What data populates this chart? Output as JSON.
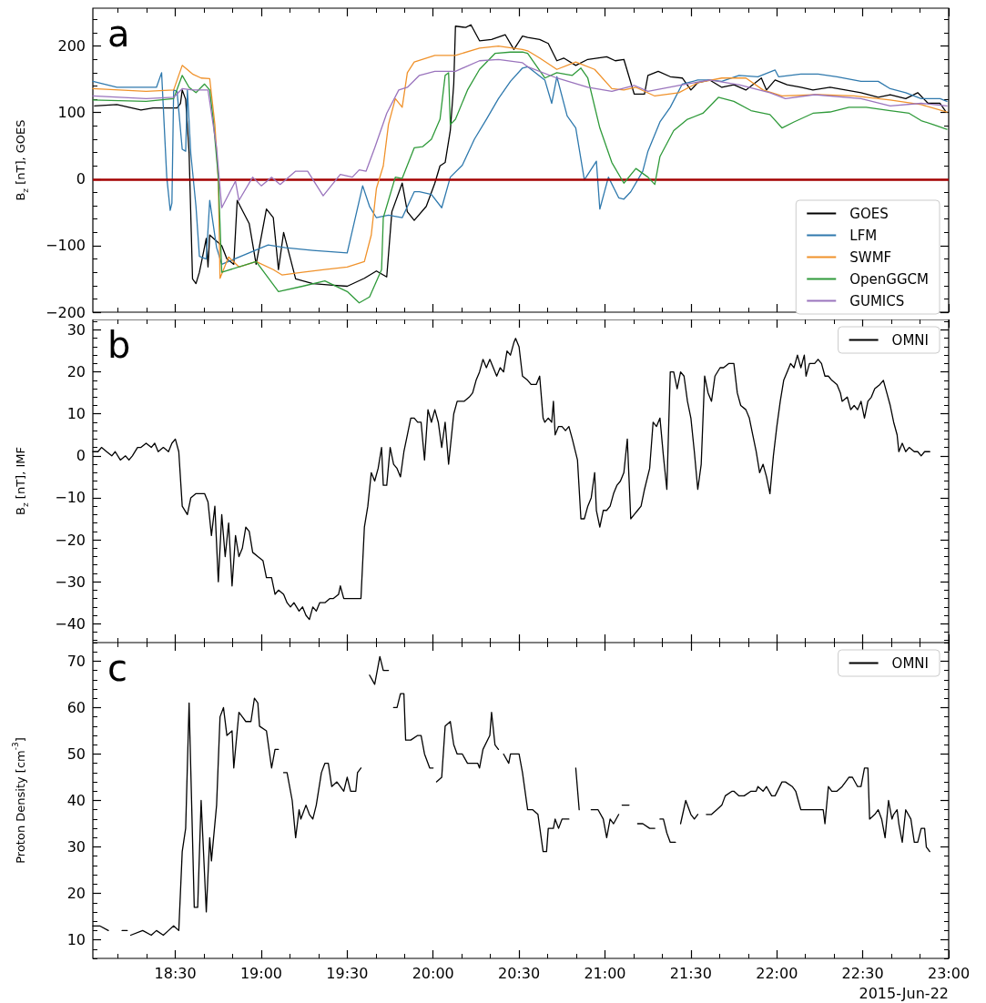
{
  "chart_data": [
    {
      "type": "line",
      "ylabel": "B$_{z}$ [nT], GOES",
      "annotations": [
        "a"
      ],
      "xlim": [
        18.02,
        23
      ],
      "xticks": [
        {
          "value": 18.5,
          "label": null
        },
        {
          "value": 19,
          "label": null
        },
        {
          "value": 19.5,
          "label": null
        },
        {
          "value": 20,
          "label": null
        },
        {
          "value": 20.5,
          "label": null
        },
        {
          "value": 21,
          "label": null
        },
        {
          "value": 21.5,
          "label": null
        },
        {
          "value": 22,
          "label": null
        },
        {
          "value": 22.5,
          "label": null
        },
        {
          "value": 23,
          "label": null
        }
      ],
      "ylim": [
        -200,
        257
      ],
      "yticks": [
        {
          "value": -200,
          "label": "−200"
        },
        {
          "value": -100,
          "label": "−100"
        },
        0,
        100,
        200
      ],
      "tick_labels": "y",
      "legend": "bottom right",
      "marker": "none",
      "line_style": "solid",
      "ref_lines": [
        {
          "axis": "y",
          "value": 0,
          "color": "#a30000"
        }
      ],
      "series": [
        {
          "name": "GOES",
          "color": "#000000",
          "x": [
            18.03,
            18.16,
            18.3,
            18.37,
            18.51,
            18.53,
            18.54,
            18.56,
            18.58,
            18.6,
            18.62,
            18.64,
            18.68,
            18.69,
            18.7,
            18.77,
            18.8,
            18.84,
            18.86,
            18.93,
            18.97,
            19.03,
            19.07,
            19.1,
            19.13,
            19.2,
            19.3,
            19.4,
            19.5,
            19.6,
            19.67,
            19.73,
            19.76,
            19.82,
            19.85,
            19.89,
            19.96,
            20.01,
            20.04,
            20.07,
            20.1,
            20.12,
            20.13,
            20.19,
            20.22,
            20.27,
            20.34,
            20.42,
            20.47,
            20.52,
            20.55,
            20.62,
            20.67,
            20.72,
            20.76,
            20.83,
            20.9,
            21.01,
            21.06,
            21.11,
            21.17,
            21.23,
            21.25,
            21.31,
            21.38,
            21.45,
            21.5,
            21.54,
            21.61,
            21.68,
            21.75,
            21.82,
            21.91,
            21.94,
            21.99,
            22.06,
            22.14,
            22.21,
            22.31,
            22.4,
            22.49,
            22.59,
            22.66,
            22.75,
            22.82,
            22.88,
            22.95,
            22.98
          ],
          "values": [
            110,
            112,
            104,
            107,
            107,
            114,
            134,
            120,
            40,
            -150,
            -157,
            -140,
            -89,
            -132,
            -84,
            -100,
            -120,
            -128,
            -32,
            -67,
            -128,
            -45,
            -58,
            -136,
            -80,
            -150,
            -157,
            -159,
            -161,
            -149,
            -138,
            -147,
            -49,
            -6,
            -49,
            -62,
            -41,
            -6,
            20,
            25,
            73,
            143,
            230,
            228,
            232,
            208,
            210,
            217,
            195,
            215,
            213,
            210,
            204,
            178,
            182,
            171,
            180,
            184,
            178,
            180,
            128,
            128,
            156,
            162,
            154,
            152,
            134,
            145,
            149,
            138,
            142,
            134,
            152,
            134,
            149,
            142,
            138,
            134,
            138,
            134,
            130,
            123,
            127,
            121,
            130,
            114,
            114,
            103
          ]
        },
        {
          "name": "LFM",
          "color": "#2f79ad",
          "x": [
            18.02,
            18.16,
            18.39,
            18.42,
            18.45,
            18.47,
            18.48,
            18.49,
            18.51,
            18.54,
            18.56,
            18.57,
            18.59,
            18.62,
            18.64,
            18.68,
            18.7,
            18.74,
            18.77,
            19.04,
            19.14,
            19.3,
            19.5,
            19.59,
            19.63,
            19.67,
            19.74,
            19.82,
            19.89,
            19.92,
            19.99,
            20.05,
            20.1,
            20.17,
            20.24,
            20.31,
            20.38,
            20.45,
            20.52,
            20.55,
            20.65,
            20.69,
            20.72,
            20.78,
            20.83,
            20.88,
            20.95,
            20.97,
            21.02,
            21.08,
            21.11,
            21.15,
            21.22,
            21.25,
            21.32,
            21.38,
            21.45,
            21.54,
            21.61,
            21.68,
            21.78,
            21.89,
            21.99,
            22.01,
            22.14,
            22.24,
            22.35,
            22.49,
            22.59,
            22.66,
            22.75,
            22.84,
            22.95,
            22.99
          ],
          "values": [
            147,
            138,
            138,
            160,
            3,
            -47,
            -36,
            134,
            132,
            45,
            42,
            134,
            38,
            -41,
            -116,
            -120,
            -32,
            -103,
            -128,
            -99,
            -103,
            -107,
            -111,
            -10,
            -41,
            -58,
            -54,
            -58,
            -19,
            -19,
            -23,
            -43,
            3,
            21,
            60,
            90,
            121,
            147,
            167,
            169,
            149,
            114,
            154,
            95,
            77,
            -1,
            27,
            -45,
            3,
            -28,
            -30,
            -19,
            12,
            42,
            86,
            108,
            143,
            149,
            149,
            147,
            156,
            154,
            164,
            154,
            158,
            158,
            154,
            147,
            147,
            136,
            130,
            121,
            121,
            117
          ]
        },
        {
          "name": "SWMF",
          "color": "#f0922b",
          "x": [
            18.02,
            18.33,
            18.49,
            18.54,
            18.6,
            18.65,
            18.7,
            18.73,
            18.75,
            18.76,
            18.81,
            18.87,
            18.97,
            19.07,
            19.12,
            19.24,
            19.37,
            19.5,
            19.6,
            19.64,
            19.67,
            19.71,
            19.74,
            19.78,
            19.82,
            19.85,
            19.89,
            20.01,
            20.13,
            20.27,
            20.38,
            20.52,
            20.55,
            20.62,
            20.72,
            20.83,
            20.94,
            21.04,
            21.11,
            21.18,
            21.29,
            21.43,
            21.54,
            21.68,
            21.82,
            21.92,
            22.03,
            22.24,
            22.45,
            22.66,
            22.84,
            22.99
          ],
          "values": [
            136,
            132,
            134,
            171,
            158,
            152,
            151,
            82,
            -1,
            -149,
            -117,
            -132,
            -124,
            -136,
            -144,
            -140,
            -136,
            -132,
            -124,
            -84,
            -14,
            20,
            82,
            121,
            108,
            160,
            176,
            186,
            186,
            197,
            200,
            195,
            193,
            182,
            165,
            176,
            165,
            136,
            134,
            138,
            125,
            130,
            145,
            152,
            152,
            134,
            125,
            127,
            125,
            119,
            112,
            101
          ]
        },
        {
          "name": "OpenGGCM",
          "color": "#2f9a3a",
          "x": [
            18.02,
            18.33,
            18.49,
            18.54,
            18.58,
            18.62,
            18.67,
            18.7,
            18.72,
            18.75,
            18.77,
            18.97,
            19.1,
            19.24,
            19.37,
            19.5,
            19.57,
            19.63,
            19.7,
            19.71,
            19.78,
            19.82,
            19.89,
            19.94,
            19.99,
            20.04,
            20.07,
            20.09,
            20.1,
            20.13,
            20.2,
            20.27,
            20.36,
            20.45,
            20.52,
            20.55,
            20.65,
            20.72,
            20.81,
            20.86,
            20.9,
            20.97,
            21.04,
            21.11,
            21.18,
            21.25,
            21.29,
            21.32,
            21.4,
            21.48,
            21.57,
            21.66,
            21.75,
            21.85,
            21.96,
            22.03,
            22.1,
            22.21,
            22.31,
            22.42,
            22.52,
            22.66,
            22.77,
            22.84,
            22.91,
            22.99
          ],
          "values": [
            119,
            117,
            121,
            156,
            138,
            130,
            143,
            134,
            90,
            3,
            -140,
            -124,
            -169,
            -161,
            -153,
            -169,
            -186,
            -177,
            -136,
            -58,
            3,
            1,
            47,
            49,
            60,
            90,
            156,
            160,
            82,
            90,
            134,
            165,
            189,
            191,
            191,
            189,
            152,
            160,
            156,
            167,
            152,
            77,
            25,
            -6,
            16,
            3,
            -8,
            34,
            73,
            90,
            99,
            123,
            117,
            103,
            97,
            77,
            86,
            99,
            101,
            108,
            108,
            103,
            99,
            88,
            82,
            75
          ]
        },
        {
          "name": "GUMICS",
          "color": "#9a74bd",
          "x": [
            18.02,
            18.33,
            18.49,
            18.54,
            18.6,
            18.69,
            18.74,
            18.77,
            18.85,
            18.87,
            18.95,
            19.0,
            19.06,
            19.11,
            19.2,
            19.27,
            19.36,
            19.46,
            19.53,
            19.57,
            19.61,
            19.66,
            19.73,
            19.8,
            19.85,
            19.92,
            20.01,
            20.13,
            20.19,
            20.27,
            20.38,
            20.52,
            20.55,
            20.72,
            20.9,
            21.04,
            21.17,
            21.25,
            21.43,
            21.61,
            21.78,
            21.96,
            22.05,
            22.22,
            22.49,
            22.66,
            22.84,
            22.99
          ],
          "values": [
            125,
            121,
            123,
            136,
            134,
            134,
            47,
            -43,
            -3,
            -32,
            3,
            -10,
            3,
            -8,
            12,
            12,
            -25,
            7,
            3,
            14,
            12,
            47,
            99,
            134,
            138,
            156,
            162,
            162,
            169,
            178,
            180,
            175,
            169,
            152,
            138,
            132,
            141,
            132,
            141,
            149,
            142,
            130,
            121,
            127,
            121,
            110,
            114,
            110
          ]
        }
      ]
    },
    {
      "type": "line",
      "ylabel": "B$_{z}$ [nT], IMF",
      "annotations": [
        "b"
      ],
      "xlim": [
        18.02,
        23
      ],
      "xticks": [
        {
          "value": 18.5,
          "label": null
        },
        {
          "value": 19,
          "label": null
        },
        {
          "value": 19.5,
          "label": null
        },
        {
          "value": 20,
          "label": null
        },
        {
          "value": 20.5,
          "label": null
        },
        {
          "value": 21,
          "label": null
        },
        {
          "value": 21.5,
          "label": null
        },
        {
          "value": 22,
          "label": null
        },
        {
          "value": 22.5,
          "label": null
        },
        {
          "value": 23,
          "label": null
        }
      ],
      "ylim": [
        -44.5,
        32.5
      ],
      "yticks": [
        {
          "value": -40,
          "label": "−40"
        },
        {
          "value": -30,
          "label": "−30"
        },
        {
          "value": -20,
          "label": "−20"
        },
        {
          "value": -10,
          "label": "−10"
        },
        0,
        10,
        20,
        30
      ],
      "tick_labels": "y",
      "legend": "top right",
      "marker": "none",
      "line_style": "solid",
      "series": [
        {
          "name": "OMNI",
          "color": "#000000",
          "x": [
            18.02,
            18.05,
            18.07,
            18.1,
            18.13,
            18.15,
            18.18,
            18.21,
            18.23,
            18.25,
            18.28,
            18.3,
            18.33,
            18.36,
            18.38,
            18.4,
            18.43,
            18.46,
            18.48,
            18.5,
            18.52,
            18.54,
            18.57,
            18.59,
            18.62,
            18.64,
            18.67,
            18.69,
            18.71,
            18.73,
            18.75,
            18.77,
            18.79,
            18.81,
            18.83,
            18.85,
            18.87,
            18.89,
            18.91,
            18.93,
            18.95,
            18.98,
            19.01,
            19.03,
            19.06,
            19.08,
            19.1,
            19.13,
            19.15,
            19.17,
            19.19,
            19.22,
            19.24,
            19.26,
            19.28,
            19.3,
            19.32,
            19.34,
            19.37,
            19.4,
            19.42,
            19.45,
            19.46,
            19.48,
            19.51,
            19.54,
            19.56,
            19.58,
            19.6,
            19.62,
            19.64,
            19.66,
            19.68,
            19.7,
            19.71,
            19.73,
            19.75,
            19.77,
            19.79,
            19.81,
            19.83,
            19.85,
            19.87,
            19.89,
            19.91,
            19.93,
            19.95,
            19.97,
            19.99,
            20.01,
            20.03,
            20.05,
            20.07,
            20.09,
            20.12,
            20.14,
            20.18,
            20.21,
            20.23,
            20.25,
            20.27,
            20.29,
            20.31,
            20.33,
            20.35,
            20.37,
            20.39,
            20.41,
            20.43,
            20.45,
            20.47,
            20.48,
            20.5,
            20.52,
            20.55,
            20.57,
            20.6,
            20.62,
            20.64,
            20.65,
            20.67,
            20.69,
            20.7,
            20.71,
            20.73,
            20.75,
            20.77,
            20.79,
            20.81,
            20.84,
            20.86,
            20.88,
            20.9,
            20.92,
            20.94,
            20.95,
            20.97,
            20.99,
            21.01,
            21.03,
            21.05,
            21.07,
            21.09,
            21.11,
            21.13,
            21.15,
            21.17,
            21.19,
            21.21,
            21.23,
            21.26,
            21.28,
            21.3,
            21.32,
            21.34,
            21.36,
            21.38,
            21.4,
            21.42,
            21.44,
            21.46,
            21.48,
            21.5,
            21.52,
            21.54,
            21.56,
            21.58,
            21.6,
            21.62,
            21.64,
            21.67,
            21.69,
            21.72,
            21.75,
            21.77,
            21.79,
            21.82,
            21.84,
            21.86,
            21.88,
            21.9,
            21.92,
            21.94,
            21.96,
            21.98,
            22.0,
            22.02,
            22.04,
            22.06,
            22.08,
            22.1,
            22.12,
            22.14,
            22.16,
            22.17,
            22.19,
            22.22,
            22.24,
            22.26,
            22.28,
            22.3,
            22.32,
            22.35,
            22.37,
            22.38,
            22.41,
            22.43,
            22.45,
            22.47,
            22.49,
            22.51,
            22.53,
            22.55,
            22.57,
            22.6,
            22.62,
            22.64,
            22.66,
            22.68,
            22.7,
            22.71,
            22.73,
            22.75,
            22.77,
            22.8,
            22.82,
            22.84,
            22.86,
            22.89
          ],
          "values": [
            1,
            1,
            2,
            1,
            0,
            1,
            -1,
            0,
            -1,
            0,
            2,
            2,
            3,
            2,
            3,
            1,
            2,
            1,
            3,
            4,
            1,
            -12,
            -14,
            -10,
            -9,
            -9,
            -9,
            -11,
            -19,
            -12,
            -30,
            -14,
            -24,
            -16,
            -31,
            -19,
            -24,
            -22,
            -17,
            -18,
            -23,
            -24,
            -25,
            -29,
            -29,
            -33,
            -32,
            -33,
            -35,
            -36,
            -35,
            -37,
            -36,
            -38,
            -39,
            -36,
            -37,
            -35,
            -35,
            -34,
            -34,
            -33,
            -31,
            -34,
            -34,
            -34,
            -34,
            -34,
            -17,
            -12,
            -4,
            -6,
            -3,
            2,
            -7,
            -7,
            2,
            -2,
            -3,
            -5,
            1,
            5,
            9,
            9,
            8,
            8,
            -1,
            11,
            8,
            11,
            8,
            2,
            8,
            -2,
            10,
            13,
            13,
            14,
            15,
            18,
            20,
            23,
            21,
            23,
            21,
            19,
            21,
            20,
            25,
            24,
            27,
            28,
            26,
            19,
            18,
            17,
            17,
            19,
            9,
            8,
            9,
            8,
            13,
            5,
            7,
            7,
            6,
            7,
            4,
            -1,
            -15,
            -15,
            -12,
            -10,
            -4,
            -13,
            -17,
            -13,
            -13,
            -12,
            -9,
            -7,
            -6,
            -4,
            4,
            -15,
            -14,
            -13,
            -12,
            -8,
            -3,
            8,
            7,
            9,
            0,
            -8,
            20,
            20,
            16,
            20,
            19,
            13,
            9,
            1,
            -8,
            -2,
            19,
            15,
            13,
            19,
            21,
            21,
            22,
            22,
            15,
            12,
            11,
            9,
            5,
            1,
            -4,
            -2,
            -5,
            -9,
            0,
            7,
            13,
            18,
            20,
            22,
            21,
            24,
            21,
            24,
            19,
            22,
            22,
            23,
            22,
            19,
            19,
            18,
            17,
            15,
            13,
            14,
            11,
            12,
            11,
            13,
            9,
            13,
            14,
            16,
            17,
            18,
            15,
            12,
            8,
            5,
            1,
            3,
            1,
            2,
            1,
            1,
            0,
            1,
            1
          ]
        }
      ]
    },
    {
      "type": "line",
      "ylabel": "Proton Density [cm$^{-3}$]",
      "xlabel": "2015-Jun-22",
      "annotations": [
        "c"
      ],
      "xlim": [
        18.02,
        23
      ],
      "xticks": [
        {
          "value": 18.5,
          "label": "18:30"
        },
        {
          "value": 19,
          "label": "19:00"
        },
        {
          "value": 19.5,
          "label": "19:30"
        },
        {
          "value": 20,
          "label": "20:00"
        },
        {
          "value": 20.5,
          "label": "20:30"
        },
        {
          "value": 21,
          "label": "21:00"
        },
        {
          "value": 21.5,
          "label": "21:30"
        },
        {
          "value": 22,
          "label": "22:00"
        },
        {
          "value": 22.5,
          "label": "22:30"
        },
        {
          "value": 23,
          "label": "23:00"
        }
      ],
      "ylim": [
        6,
        74
      ],
      "yticks": [
        10,
        20,
        30,
        40,
        50,
        60,
        70
      ],
      "legend": "top right",
      "marker": "none",
      "line_style": "solid",
      "series": [
        {
          "name": "OMNI",
          "color": "#000000",
          "x": [
            18.02,
            18.06,
            18.11,
            18.15,
            18.19,
            18.22,
            18.23,
            18.24,
            18.31,
            18.36,
            18.39,
            18.43,
            18.46,
            18.49,
            18.52,
            18.54,
            18.56,
            18.58,
            18.61,
            18.63,
            18.65,
            18.68,
            18.7,
            18.71,
            18.74,
            18.76,
            18.78,
            18.8,
            18.83,
            18.84,
            18.87,
            18.89,
            18.91,
            18.94,
            18.96,
            18.98,
            18.99,
            19.03,
            19.06,
            19.08,
            19.1,
            19.115,
            19.13,
            19.15,
            19.18,
            19.2,
            19.22,
            19.23,
            19.26,
            19.28,
            19.3,
            19.32,
            19.35,
            19.37,
            19.39,
            19.41,
            19.44,
            19.46,
            19.48,
            19.5,
            19.52,
            19.55,
            19.56,
            19.58,
            19.6,
            19.63,
            19.66,
            19.68,
            19.69,
            19.71,
            19.74,
            19.755,
            19.77,
            19.79,
            19.81,
            19.83,
            19.84,
            19.87,
            19.91,
            19.93,
            19.95,
            19.98,
            20.0,
            20.01,
            20.02,
            20.05,
            20.07,
            20.1,
            20.12,
            20.14,
            20.17,
            20.2,
            20.23,
            20.26,
            20.27,
            20.29,
            20.33,
            20.34,
            20.36,
            20.38,
            20.395,
            20.41,
            20.44,
            20.45,
            20.48,
            20.5,
            20.52,
            20.55,
            20.58,
            20.61,
            20.64,
            20.66,
            20.67,
            20.7,
            20.71,
            20.73,
            20.75,
            20.79,
            20.81,
            20.83,
            20.85,
            20.88,
            20.92,
            20.96,
            20.99,
            21.01,
            21.03,
            21.05,
            21.08,
            21.09,
            21.1,
            21.14,
            21.165,
            21.19,
            21.22,
            21.26,
            21.29,
            21.305,
            21.32,
            21.34,
            21.36,
            21.38,
            21.41,
            21.425,
            21.44,
            21.47,
            21.5,
            21.52,
            21.54,
            21.565,
            21.59,
            21.62,
            21.65,
            21.68,
            21.7,
            21.74,
            21.75,
            21.78,
            21.81,
            21.85,
            21.88,
            21.89,
            21.92,
            21.94,
            21.97,
            21.99,
            22.03,
            22.05,
            22.09,
            22.11,
            22.14,
            22.17,
            22.2,
            22.23,
            22.27,
            22.28,
            22.3,
            22.32,
            22.35,
            22.38,
            22.4,
            22.42,
            22.44,
            22.47,
            22.49,
            22.51,
            22.53,
            22.54,
            22.57,
            22.59,
            22.61,
            22.63,
            22.65,
            22.67,
            22.68,
            22.7,
            22.71,
            22.73,
            22.75,
            22.78,
            22.8,
            22.82,
            22.84,
            22.86,
            22.87,
            22.89
          ],
          "values": [
            13,
            13,
            12,
            null,
            12,
            12,
            null,
            11,
            12,
            11,
            12,
            11,
            12,
            13,
            12,
            29,
            34,
            61,
            17,
            17,
            40,
            16,
            32,
            27,
            39,
            58,
            60,
            54,
            55,
            47,
            59,
            58,
            57,
            57,
            62,
            61,
            56,
            55,
            47,
            51,
            51,
            null,
            46,
            46,
            40,
            32,
            38,
            36,
            39,
            37,
            36,
            39,
            46,
            48,
            48,
            43,
            44,
            43,
            42,
            45,
            42,
            42,
            46,
            47,
            null,
            67,
            65,
            69,
            71,
            68,
            68,
            null,
            60,
            60,
            63,
            63,
            53,
            53,
            54,
            54,
            50,
            47,
            47,
            null,
            44,
            45,
            56,
            57,
            52,
            50,
            50,
            48,
            48,
            48,
            47,
            51,
            54,
            59,
            52,
            51,
            null,
            50,
            48,
            50,
            50,
            50,
            46,
            38,
            38,
            37,
            29,
            29,
            34,
            34,
            36,
            34,
            36,
            36,
            null,
            47,
            38,
            null,
            38,
            38,
            36,
            32,
            36,
            35,
            37,
            null,
            39,
            39,
            null,
            35,
            35,
            34,
            34,
            null,
            36,
            36,
            33,
            31,
            31,
            null,
            35,
            40,
            37,
            36,
            37,
            null,
            37,
            37,
            38,
            39,
            41,
            42,
            42,
            41,
            41,
            42,
            42,
            43,
            42,
            43,
            41,
            41,
            44,
            44,
            43,
            42,
            38,
            38,
            38,
            38,
            38,
            35,
            43,
            42,
            42,
            43,
            44,
            45,
            45,
            43,
            43,
            47,
            47,
            36,
            37,
            38,
            36,
            32,
            40,
            36,
            37,
            38,
            35,
            31,
            38,
            36,
            31,
            31,
            34,
            34,
            30,
            29
          ]
        }
      ]
    }
  ]
}
